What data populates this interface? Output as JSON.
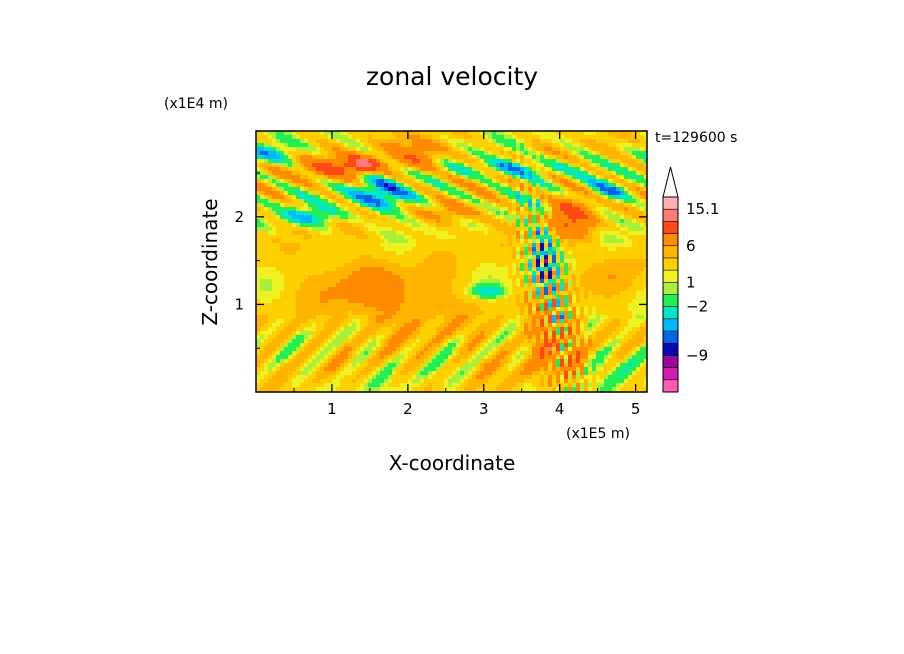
{
  "chart_data": {
    "type": "heatmap",
    "title": "zonal velocity",
    "xlabel": "X-coordinate",
    "ylabel": "Z-coordinate",
    "x_scale_label": "(x1E5 m)",
    "y_scale_label": "(x1E4 m)",
    "time_label": "t=129600 s",
    "xlim": [
      0,
      5.15
    ],
    "ylim": [
      0,
      2.98
    ],
    "x_ticks": [
      "1",
      "2",
      "3",
      "4",
      "5"
    ],
    "y_ticks": [
      "1",
      "2"
    ],
    "colorbar": {
      "extend": "max",
      "colors": [
        "#ff5ab4",
        "#d01cb0",
        "#9a0a9a",
        "#0a0ab4",
        "#0066e6",
        "#00b8ff",
        "#00e6c8",
        "#22ee55",
        "#aaf03a",
        "#eef222",
        "#ffd000",
        "#ffb400",
        "#ff8c00",
        "#ff4a16",
        "#ff7a78",
        "#ffb0b0"
      ],
      "labels": [
        "15.1",
        "6",
        "1",
        "-2",
        "-9"
      ]
    },
    "features": [
      {
        "x": 0.05,
        "z": 2.7,
        "value": -3,
        "rx": 0.35,
        "rz": 0.12
      },
      {
        "x": 1.0,
        "z": 2.55,
        "value": 4,
        "rx": 0.5,
        "rz": 0.13
      },
      {
        "x": 1.4,
        "z": 2.6,
        "value": 7,
        "rx": 0.25,
        "rz": 0.09
      },
      {
        "x": 2.15,
        "z": 2.7,
        "value": 4,
        "rx": 0.35,
        "rz": 0.18
      },
      {
        "x": 3.4,
        "z": 2.55,
        "value": -3,
        "rx": 0.7,
        "rz": 0.1
      },
      {
        "x": 4.7,
        "z": 2.3,
        "value": -3,
        "rx": 0.3,
        "rz": 0.12
      },
      {
        "x": 1.7,
        "z": 2.25,
        "value": -4,
        "rx": 0.5,
        "rz": 0.18
      },
      {
        "x": 0.7,
        "z": 2.0,
        "value": -3,
        "rx": 0.4,
        "rz": 0.1
      },
      {
        "x": 2.6,
        "z": 2.05,
        "value": 3,
        "rx": 0.35,
        "rz": 0.12
      },
      {
        "x": 4.15,
        "z": 2.0,
        "value": 5,
        "rx": 0.3,
        "rz": 0.25
      },
      {
        "x": 3.8,
        "z": 1.55,
        "value": -3,
        "rx": 0.15,
        "rz": 0.45
      },
      {
        "x": 3.05,
        "z": 1.15,
        "value": -3,
        "rx": 0.25,
        "rz": 0.08
      },
      {
        "x": 1.9,
        "z": 1.0,
        "value": 2,
        "rx": 0.9,
        "rz": 0.4
      },
      {
        "x": 1.2,
        "z": 1.3,
        "value": 1.5,
        "rx": 0.6,
        "rz": 0.3
      },
      {
        "x": 3.8,
        "z": 0.6,
        "value": 4,
        "rx": 0.2,
        "rz": 0.4
      },
      {
        "x": 4.2,
        "z": 0.5,
        "value": 3,
        "rx": 0.15,
        "rz": 0.5
      },
      {
        "x": 4.85,
        "z": 0.3,
        "value": -1,
        "rx": 0.3,
        "rz": 0.25
      },
      {
        "x": 3.3,
        "z": 0.4,
        "value": 1,
        "rx": 0.5,
        "rz": 0.3
      },
      {
        "x": 0.4,
        "z": 0.5,
        "value": 0.5,
        "rx": 0.4,
        "rz": 0.35
      },
      {
        "x": 2.8,
        "z": 1.8,
        "value": 0.3,
        "rx": 0.3,
        "rz": 0.2
      },
      {
        "x": 4.8,
        "z": 1.3,
        "value": 1.5,
        "rx": 0.3,
        "rz": 0.3
      }
    ]
  }
}
